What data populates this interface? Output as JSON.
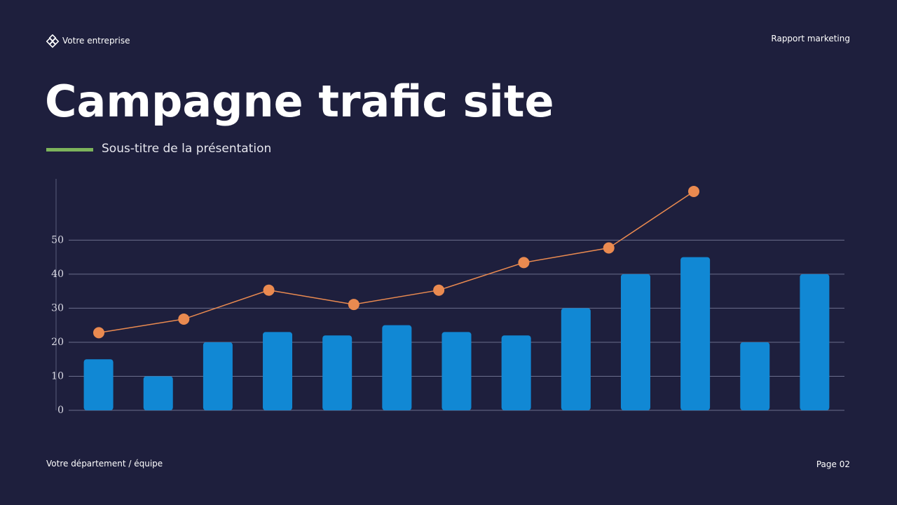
{
  "header": {
    "company": "Votre entreprise",
    "report": "Rapport marketing",
    "title": "Campagne trafic site",
    "subtitle": "Sous-titre de la présentation"
  },
  "footer": {
    "department": "Votre département / équipe",
    "page": "Page 02"
  },
  "chart_data": [
    {
      "type": "bar",
      "categories": [
        null,
        null,
        null,
        null,
        null,
        null,
        null,
        null,
        null,
        null,
        null,
        null,
        null
      ],
      "values": [
        15,
        10,
        20,
        23,
        22,
        25,
        23,
        22,
        30,
        40,
        45,
        20,
        40
      ],
      "color": "#1188d4",
      "ylim": [
        0,
        68
      ],
      "yticks": [
        0,
        10,
        20,
        30,
        40,
        50
      ],
      "grid": true
    },
    {
      "type": "line",
      "categories": [
        null,
        null,
        null,
        null,
        null,
        null,
        null,
        null
      ],
      "values": [
        22.8,
        26.8,
        35.3,
        31.1,
        35.3,
        43.4,
        47.7,
        64.3
      ],
      "color": "#ea8a50",
      "ylim": [
        0,
        68
      ]
    }
  ]
}
